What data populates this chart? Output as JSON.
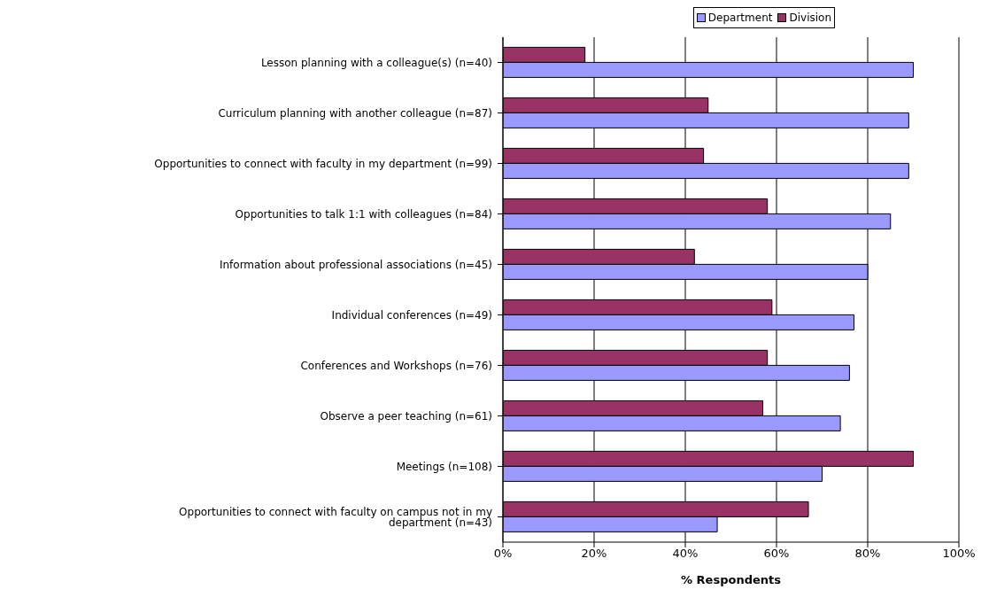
{
  "chart_data": {
    "type": "bar",
    "orientation": "horizontal",
    "xlabel": "% Respondents",
    "categories": [
      "Lesson planning with a colleague(s) (n=40)",
      "Curriculum planning with another colleague (n=87)",
      "Opportunities to connect with faculty in my department (n=99)",
      "Opportunities to talk 1:1 with colleagues (n=84)",
      "Information about professional associations (n=45)",
      "Individual conferences (n=49)",
      "Conferences and Workshops (n=76)",
      "Observe a peer teaching (n=61)",
      "Meetings (n=108)",
      "Opportunities to connect with faculty on campus not in my department (n=43)"
    ],
    "series": [
      {
        "name": "Department",
        "color": "#9999ff",
        "values": [
          90,
          89,
          89,
          85,
          80,
          77,
          76,
          74,
          70,
          47
        ]
      },
      {
        "name": "Division",
        "color": "#993366",
        "values": [
          18,
          45,
          44,
          58,
          42,
          59,
          58,
          57,
          90,
          67
        ]
      }
    ],
    "xlim": [
      0,
      100
    ],
    "xticks": [
      {
        "value": 0,
        "label": "0%"
      },
      {
        "value": 20,
        "label": "20%"
      },
      {
        "value": 40,
        "label": "40%"
      },
      {
        "value": 60,
        "label": "60%"
      },
      {
        "value": 80,
        "label": "80%"
      },
      {
        "value": 100,
        "label": "100%"
      }
    ],
    "grid": "x",
    "legend": "top"
  }
}
